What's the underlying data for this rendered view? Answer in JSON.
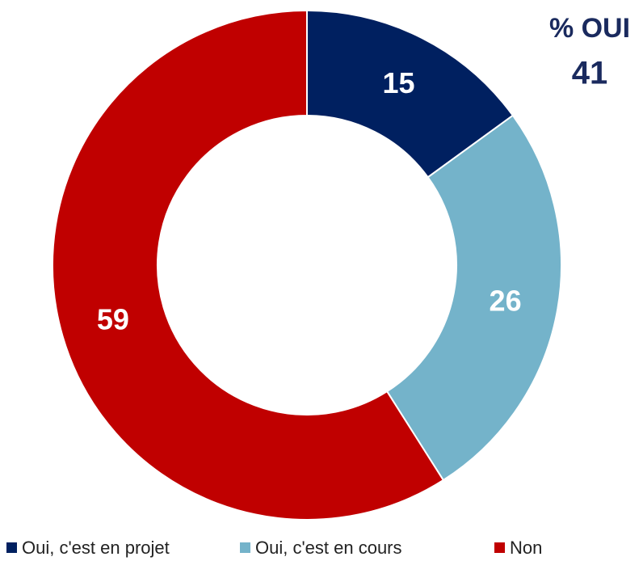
{
  "chart_data": {
    "type": "donut",
    "categories": [
      "Oui, c'est en projet",
      "Oui, c'est en cours",
      "Non"
    ],
    "values": [
      15,
      26,
      59
    ],
    "colors": [
      "#002060",
      "#74b3ca",
      "#c00000"
    ],
    "annotation": {
      "title": "% OUI",
      "value": 41
    },
    "legend": "bottom"
  }
}
